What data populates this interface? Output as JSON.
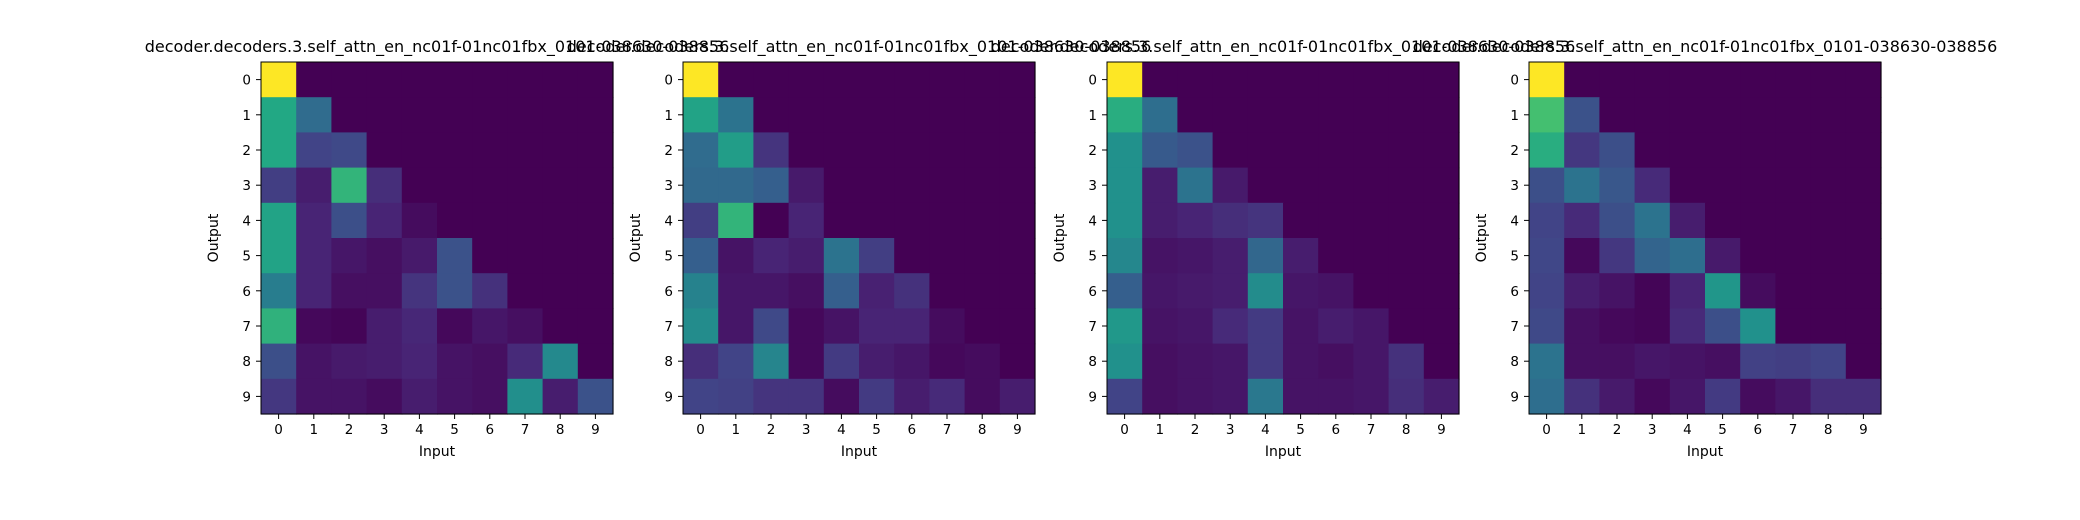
{
  "chart_data": [
    {
      "type": "heatmap",
      "title": "decoder.decoders.3.self_attn_en_nc01f-01nc01fbx_0101-038630-038856",
      "xlabel": "Input",
      "ylabel": "Output",
      "x_ticks": [
        "0",
        "1",
        "2",
        "3",
        "4",
        "5",
        "6",
        "7",
        "8",
        "9"
      ],
      "y_ticks": [
        "0",
        "1",
        "2",
        "3",
        "4",
        "5",
        "6",
        "7",
        "8",
        "9"
      ],
      "colormap": "viridis",
      "vrange": [
        0,
        1
      ],
      "values": [
        [
          1.0,
          0.0,
          0.0,
          0.0,
          0.0,
          0.0,
          0.0,
          0.0,
          0.0,
          0.0
        ],
        [
          0.6,
          0.35,
          0.0,
          0.0,
          0.0,
          0.0,
          0.0,
          0.0,
          0.0,
          0.0
        ],
        [
          0.6,
          0.2,
          0.22,
          0.0,
          0.0,
          0.0,
          0.0,
          0.0,
          0.0,
          0.0
        ],
        [
          0.18,
          0.08,
          0.65,
          0.13,
          0.0,
          0.0,
          0.0,
          0.0,
          0.0,
          0.0
        ],
        [
          0.58,
          0.1,
          0.24,
          0.1,
          0.03,
          0.0,
          0.0,
          0.0,
          0.0,
          0.0
        ],
        [
          0.58,
          0.1,
          0.06,
          0.04,
          0.07,
          0.25,
          0.0,
          0.0,
          0.0,
          0.0
        ],
        [
          0.42,
          0.1,
          0.04,
          0.04,
          0.15,
          0.25,
          0.14,
          0.0,
          0.0,
          0.0
        ],
        [
          0.64,
          0.02,
          0.01,
          0.08,
          0.11,
          0.02,
          0.06,
          0.04,
          0.0,
          0.0
        ],
        [
          0.24,
          0.05,
          0.07,
          0.08,
          0.1,
          0.05,
          0.04,
          0.12,
          0.47,
          0.0
        ],
        [
          0.16,
          0.05,
          0.05,
          0.03,
          0.08,
          0.05,
          0.04,
          0.49,
          0.08,
          0.25
        ]
      ]
    },
    {
      "type": "heatmap",
      "title": "decoder.decoders.3.self_attn_en_nc01f-01nc01fbx_0101-038630-038856",
      "xlabel": "Input",
      "ylabel": "Output",
      "x_ticks": [
        "0",
        "1",
        "2",
        "3",
        "4",
        "5",
        "6",
        "7",
        "8",
        "9"
      ],
      "y_ticks": [
        "0",
        "1",
        "2",
        "3",
        "4",
        "5",
        "6",
        "7",
        "8",
        "9"
      ],
      "colormap": "viridis",
      "vrange": [
        0,
        1
      ],
      "values": [
        [
          1.0,
          0.0,
          0.0,
          0.0,
          0.0,
          0.0,
          0.0,
          0.0,
          0.0,
          0.0
        ],
        [
          0.58,
          0.38,
          0.0,
          0.0,
          0.0,
          0.0,
          0.0,
          0.0,
          0.0,
          0.0
        ],
        [
          0.35,
          0.55,
          0.15,
          0.0,
          0.0,
          0.0,
          0.0,
          0.0,
          0.0,
          0.0
        ],
        [
          0.34,
          0.34,
          0.3,
          0.07,
          0.0,
          0.0,
          0.0,
          0.0,
          0.0,
          0.0
        ],
        [
          0.18,
          0.65,
          0.0,
          0.1,
          0.0,
          0.0,
          0.0,
          0.0,
          0.0,
          0.0
        ],
        [
          0.3,
          0.05,
          0.1,
          0.08,
          0.38,
          0.18,
          0.0,
          0.0,
          0.0,
          0.0
        ],
        [
          0.44,
          0.06,
          0.06,
          0.04,
          0.3,
          0.09,
          0.14,
          0.0,
          0.0,
          0.0
        ],
        [
          0.48,
          0.06,
          0.22,
          0.02,
          0.05,
          0.1,
          0.1,
          0.03,
          0.0,
          0.0
        ],
        [
          0.13,
          0.2,
          0.45,
          0.02,
          0.17,
          0.08,
          0.06,
          0.02,
          0.03,
          0.0
        ],
        [
          0.2,
          0.19,
          0.15,
          0.15,
          0.03,
          0.17,
          0.08,
          0.12,
          0.03,
          0.08
        ]
      ]
    },
    {
      "type": "heatmap",
      "title": "decoder.decoders.3.self_attn_en_nc01f-01nc01fbx_0101-038630-038856",
      "xlabel": "Input",
      "ylabel": "Output",
      "x_ticks": [
        "0",
        "1",
        "2",
        "3",
        "4",
        "5",
        "6",
        "7",
        "8",
        "9"
      ],
      "y_ticks": [
        "0",
        "1",
        "2",
        "3",
        "4",
        "5",
        "6",
        "7",
        "8",
        "9"
      ],
      "colormap": "viridis",
      "vrange": [
        0,
        1
      ],
      "values": [
        [
          1.0,
          0.0,
          0.0,
          0.0,
          0.0,
          0.0,
          0.0,
          0.0,
          0.0,
          0.0
        ],
        [
          0.62,
          0.36,
          0.0,
          0.0,
          0.0,
          0.0,
          0.0,
          0.0,
          0.0,
          0.0
        ],
        [
          0.5,
          0.28,
          0.25,
          0.0,
          0.0,
          0.0,
          0.0,
          0.0,
          0.0,
          0.0
        ],
        [
          0.5,
          0.08,
          0.38,
          0.07,
          0.0,
          0.0,
          0.0,
          0.0,
          0.0,
          0.0
        ],
        [
          0.5,
          0.08,
          0.1,
          0.13,
          0.15,
          0.0,
          0.0,
          0.0,
          0.0,
          0.0
        ],
        [
          0.46,
          0.05,
          0.06,
          0.08,
          0.33,
          0.08,
          0.0,
          0.0,
          0.0,
          0.0
        ],
        [
          0.3,
          0.06,
          0.07,
          0.08,
          0.48,
          0.06,
          0.05,
          0.0,
          0.0,
          0.0
        ],
        [
          0.53,
          0.05,
          0.06,
          0.12,
          0.17,
          0.05,
          0.08,
          0.06,
          0.0,
          0.0
        ],
        [
          0.5,
          0.04,
          0.05,
          0.06,
          0.17,
          0.05,
          0.04,
          0.06,
          0.14,
          0.0
        ],
        [
          0.2,
          0.04,
          0.05,
          0.06,
          0.4,
          0.05,
          0.05,
          0.06,
          0.13,
          0.08
        ]
      ]
    },
    {
      "type": "heatmap",
      "title": "decoder.decoders.3.self_attn_en_nc01f-01nc01fbx_0101-038630-038856",
      "xlabel": "Input",
      "ylabel": "Output",
      "x_ticks": [
        "0",
        "1",
        "2",
        "3",
        "4",
        "5",
        "6",
        "7",
        "8",
        "9"
      ],
      "y_ticks": [
        "0",
        "1",
        "2",
        "3",
        "4",
        "5",
        "6",
        "7",
        "8",
        "9"
      ],
      "colormap": "viridis",
      "vrange": [
        0,
        1
      ],
      "values": [
        [
          1.0,
          0.0,
          0.0,
          0.0,
          0.0,
          0.0,
          0.0,
          0.0,
          0.0,
          0.0
        ],
        [
          0.7,
          0.25,
          0.0,
          0.0,
          0.0,
          0.0,
          0.0,
          0.0,
          0.0,
          0.0
        ],
        [
          0.62,
          0.16,
          0.24,
          0.0,
          0.0,
          0.0,
          0.0,
          0.0,
          0.0,
          0.0
        ],
        [
          0.24,
          0.38,
          0.27,
          0.12,
          0.0,
          0.0,
          0.0,
          0.0,
          0.0,
          0.0
        ],
        [
          0.2,
          0.12,
          0.24,
          0.38,
          0.08,
          0.0,
          0.0,
          0.0,
          0.0,
          0.0
        ],
        [
          0.21,
          0.02,
          0.16,
          0.32,
          0.36,
          0.07,
          0.0,
          0.0,
          0.0,
          0.0
        ],
        [
          0.2,
          0.08,
          0.05,
          0.01,
          0.1,
          0.52,
          0.03,
          0.0,
          0.0,
          0.0
        ],
        [
          0.22,
          0.04,
          0.02,
          0.01,
          0.12,
          0.24,
          0.5,
          0.0,
          0.0,
          0.0
        ],
        [
          0.38,
          0.04,
          0.04,
          0.06,
          0.05,
          0.04,
          0.19,
          0.18,
          0.2,
          0.0
        ],
        [
          0.36,
          0.14,
          0.07,
          0.02,
          0.06,
          0.17,
          0.03,
          0.06,
          0.13,
          0.13
        ]
      ]
    }
  ]
}
